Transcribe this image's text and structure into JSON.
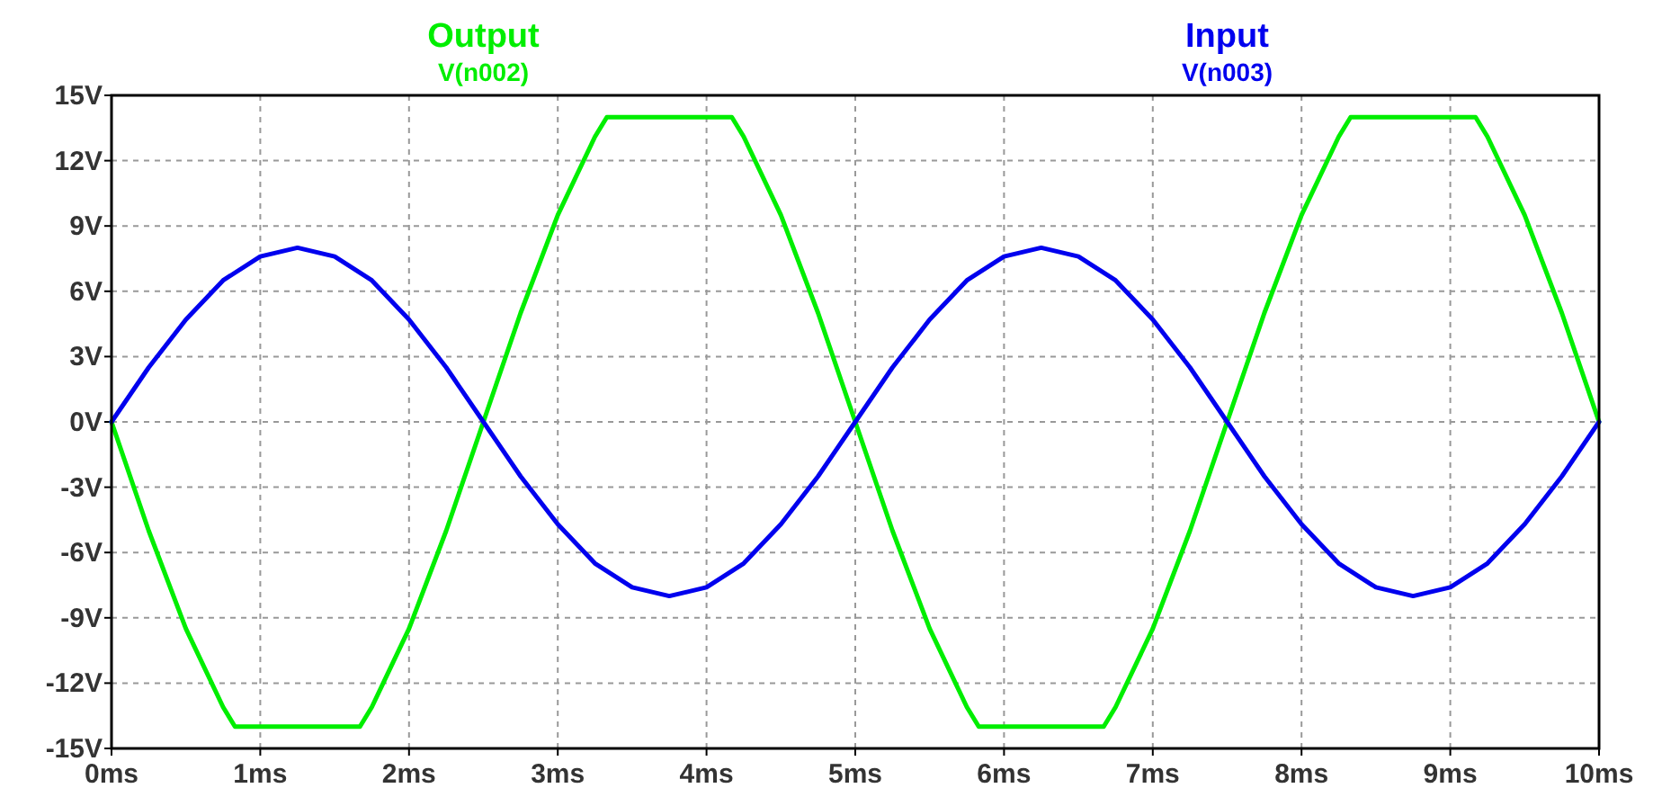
{
  "chart_data": {
    "type": "line",
    "series": [
      {
        "name": "Output",
        "color": "#00ee00",
        "x": [
          0,
          0.25,
          0.5,
          0.75,
          0.83,
          1.67,
          1.75,
          2,
          2.25,
          2.5,
          2.75,
          3,
          3.25,
          3.33,
          4.17,
          4.25,
          4.5,
          4.75,
          5,
          5.25,
          5.5,
          5.75,
          5.83,
          6.67,
          6.75,
          7,
          7.25,
          7.5,
          7.75,
          8,
          8.25,
          8.33,
          9.17,
          9.25,
          9.5,
          9.75,
          10
        ],
        "values": [
          0,
          -5,
          -9.5,
          -13.1,
          -14,
          -14,
          -13.1,
          -9.5,
          -5,
          0,
          5,
          9.5,
          13.1,
          14,
          14,
          13.1,
          9.5,
          5,
          0,
          -5,
          -9.5,
          -13.1,
          -14,
          -14,
          -13.1,
          -9.5,
          -5,
          0,
          5,
          9.5,
          13.1,
          14,
          14,
          13.1,
          9.5,
          5,
          0
        ]
      },
      {
        "name": "Input",
        "color": "#0000ee",
        "x": [
          0,
          0.25,
          0.5,
          0.75,
          1,
          1.25,
          1.5,
          1.75,
          2,
          2.25,
          2.5,
          2.75,
          3,
          3.25,
          3.5,
          3.75,
          4,
          4.25,
          4.5,
          4.75,
          5,
          5.25,
          5.5,
          5.75,
          6,
          6.25,
          6.5,
          6.75,
          7,
          7.25,
          7.5,
          7.75,
          8,
          8.25,
          8.5,
          8.75,
          9,
          9.25,
          9.5,
          9.75,
          10
        ],
        "values": [
          0,
          2.5,
          4.7,
          6.5,
          7.6,
          8,
          7.6,
          6.5,
          4.7,
          2.5,
          0,
          -2.5,
          -4.7,
          -6.5,
          -7.6,
          -8,
          -7.6,
          -6.5,
          -4.7,
          -2.5,
          0,
          2.5,
          4.7,
          6.5,
          7.6,
          8,
          7.6,
          6.5,
          4.7,
          2.5,
          0,
          -2.5,
          -4.7,
          -6.5,
          -7.6,
          -8,
          -7.6,
          -6.5,
          -4.7,
          -2.5,
          0
        ]
      }
    ],
    "annotations": [
      "V(n002)",
      "V(n003)"
    ],
    "xlim": [
      0,
      10
    ],
    "xticks": [
      {
        "value": 0,
        "label": "0ms"
      },
      {
        "value": 1,
        "label": "1ms"
      },
      {
        "value": 2,
        "label": "2ms"
      },
      {
        "value": 3,
        "label": "3ms"
      },
      {
        "value": 4,
        "label": "4ms"
      },
      {
        "value": 5,
        "label": "5ms"
      },
      {
        "value": 6,
        "label": "6ms"
      },
      {
        "value": 7,
        "label": "7ms"
      },
      {
        "value": 8,
        "label": "8ms"
      },
      {
        "value": 9,
        "label": "9ms"
      },
      {
        "value": 10,
        "label": "10ms"
      }
    ],
    "ylim": [
      -15,
      15
    ],
    "yticks": [
      {
        "value": -15,
        "label": "-15V"
      },
      {
        "value": -12,
        "label": "-12V"
      },
      {
        "value": -9,
        "label": "-9V"
      },
      {
        "value": -6,
        "label": "-6V"
      },
      {
        "value": -3,
        "label": "-3V"
      },
      {
        "value": 0,
        "label": "0V"
      },
      {
        "value": 3,
        "label": "3V"
      },
      {
        "value": 6,
        "label": "6V"
      },
      {
        "value": 9,
        "label": "9V"
      },
      {
        "value": 12,
        "label": "12V"
      },
      {
        "value": 15,
        "label": "15V"
      }
    ],
    "grid": true,
    "legend": "top",
    "line_style": "solid",
    "marker": "none"
  }
}
